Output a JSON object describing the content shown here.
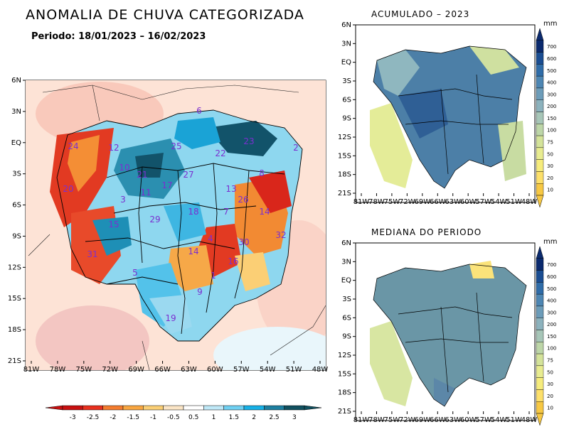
{
  "main_title": "ANOMALIA DE CHUVA CATEGORIZADA",
  "period_text": "Periodo: 18/01/2023 – 16/02/2023",
  "left_map": {
    "lat_ticks": [
      "6N",
      "3N",
      "EQ",
      "3S",
      "6S",
      "9S",
      "12S",
      "15S",
      "18S",
      "21S"
    ],
    "lon_ticks": [
      "81W",
      "78W",
      "75W",
      "72W",
      "69W",
      "66W",
      "63W",
      "60W",
      "57W",
      "54W",
      "51W",
      "48W"
    ],
    "basin_labels": [
      "6",
      "24",
      "12",
      "25",
      "22",
      "23",
      "2",
      "10",
      "21",
      "27",
      "8",
      "20",
      "3",
      "11",
      "17",
      "13",
      "26",
      "14",
      "7",
      "18",
      "15",
      "32",
      "29",
      "30",
      "14",
      "31",
      "16",
      "5",
      "4",
      "9",
      "19",
      "1"
    ],
    "colorbar": {
      "labels": [
        "-3",
        "-2.5",
        "-2",
        "-1.5",
        "-1",
        "-0.5",
        "0.5",
        "1",
        "1.5",
        "2",
        "2.5",
        "3"
      ],
      "colors": [
        "#c81010",
        "#e8301e",
        "#f47c2e",
        "#f9a640",
        "#fbcf75",
        "#fbe5c6",
        "#ffffff",
        "#bfe8f7",
        "#6fd0f2",
        "#16b0e6",
        "#1d7fa0",
        "#11505f"
      ]
    }
  },
  "right_top": {
    "title": "ACUMULADO – 2023",
    "unit": "mm",
    "lat_ticks": [
      "6N",
      "3N",
      "EQ",
      "3S",
      "6S",
      "9S",
      "12S",
      "15S",
      "18S",
      "21S"
    ],
    "lon_ticks": [
      "81W",
      "78W",
      "75W",
      "72W",
      "69W",
      "66W",
      "63W",
      "60W",
      "57W",
      "54W",
      "51W",
      "48W"
    ]
  },
  "right_bottom": {
    "title": "MEDIANA DO PERIODO",
    "unit": "mm",
    "lat_ticks": [
      "6N",
      "3N",
      "EQ",
      "3S",
      "6S",
      "9S",
      "12S",
      "15S",
      "18S",
      "21S"
    ],
    "lon_ticks": [
      "81W",
      "78W",
      "75W",
      "72W",
      "69W",
      "66W",
      "63W",
      "60W",
      "57W",
      "54W",
      "51W",
      "48W"
    ]
  },
  "mm_scale": {
    "labels": [
      "700",
      "600",
      "500",
      "400",
      "300",
      "200",
      "150",
      "100",
      "75",
      "50",
      "30",
      "20",
      "10"
    ],
    "colors": [
      "#0b2a6e",
      "#1a4d92",
      "#2f6ca8",
      "#4d86b3",
      "#6c9cb9",
      "#8cb2bd",
      "#a7c6b8",
      "#bdd6a8",
      "#d4e39a",
      "#e8ec90",
      "#f6ec7c",
      "#fde06a",
      "#f7c843"
    ]
  }
}
